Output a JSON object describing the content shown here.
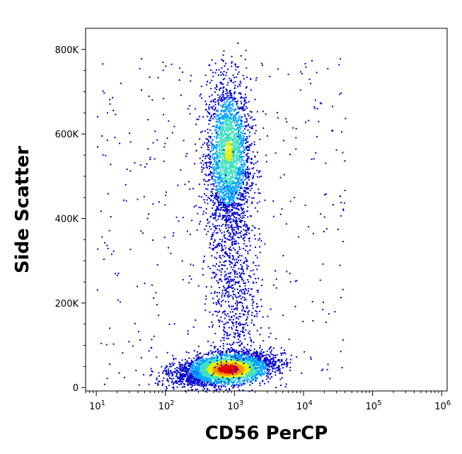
{
  "chart_data": {
    "type": "scatter",
    "plot_style": "flow cytometry density dot plot",
    "xlabel": "CD56 PerCP",
    "ylabel": "Side Scatter",
    "x_scale": "log",
    "xlim": [
      7,
      1200000
    ],
    "ylim": [
      -8000,
      850000
    ],
    "x_ticks": [
      {
        "base": "10",
        "exp": "1",
        "value": 10
      },
      {
        "base": "10",
        "exp": "2",
        "value": 100
      },
      {
        "base": "10",
        "exp": "3",
        "value": 1000
      },
      {
        "base": "10",
        "exp": "4",
        "value": 10000
      },
      {
        "base": "10",
        "exp": "5",
        "value": 100000
      },
      {
        "base": "10",
        "exp": "6",
        "value": 1000000
      }
    ],
    "y_ticks": [
      {
        "label": "0",
        "value": 0
      },
      {
        "label": "200K",
        "value": 200000
      },
      {
        "label": "400K",
        "value": 400000
      },
      {
        "label": "600K",
        "value": 600000
      },
      {
        "label": "800K",
        "value": 800000
      }
    ],
    "populations": [
      {
        "center_x": 800,
        "center_y": 540000,
        "spread_log_x": 0.16,
        "spread_y": 95000,
        "density": "high"
      },
      {
        "center_x": 700,
        "center_y": 45000,
        "spread_log_x": 0.35,
        "spread_y": 17000,
        "density": "very high"
      },
      {
        "center_x": 1000,
        "center_y": 220000,
        "spread_log_x": 0.18,
        "spread_y": 120000,
        "density": "low"
      }
    ],
    "color_scale": [
      "#0000d0",
      "#00a0ff",
      "#40e0c0",
      "#e0f000",
      "#ff9000",
      "#e00000"
    ],
    "grid": false
  }
}
